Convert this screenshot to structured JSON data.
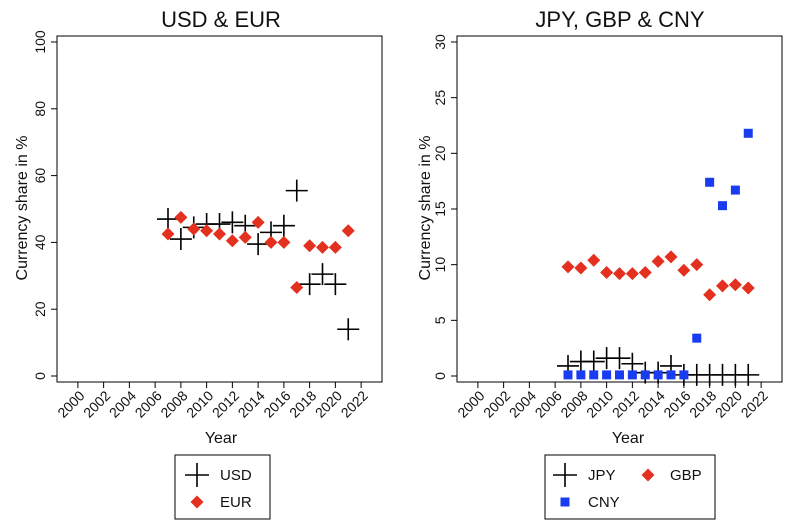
{
  "chart_data": [
    {
      "type": "scatter",
      "title": "USD & EUR",
      "xlabel": "Year",
      "ylabel": "Currency share in %",
      "xlim": [
        1999,
        2023
      ],
      "ylim": [
        0,
        100
      ],
      "xticks": [
        "2000",
        "2002",
        "2004",
        "2006",
        "2008",
        "2010",
        "2012",
        "2014",
        "2016",
        "2018",
        "2020",
        "2022"
      ],
      "yticks": [
        "0",
        "20",
        "40",
        "60",
        "80",
        "100"
      ],
      "grid": false,
      "legend_position": "bottom",
      "series": [
        {
          "name": "USD",
          "marker": "plus",
          "color": "#000000",
          "x": [
            2007,
            2008,
            2009,
            2010,
            2011,
            2012,
            2013,
            2014,
            2015,
            2016,
            2017,
            2018,
            2019,
            2020,
            2021
          ],
          "y": [
            47,
            41,
            44.5,
            45.5,
            45.5,
            46,
            45,
            39.5,
            43,
            45,
            55.5,
            27.5,
            30.5,
            27.5,
            14
          ]
        },
        {
          "name": "EUR",
          "marker": "diamond",
          "color": "#e3301f",
          "x": [
            2007,
            2008,
            2009,
            2010,
            2011,
            2012,
            2013,
            2014,
            2015,
            2016,
            2017,
            2018,
            2019,
            2020,
            2021
          ],
          "y": [
            42.5,
            47.5,
            44,
            43.5,
            42.5,
            40.5,
            41.5,
            46,
            40,
            40,
            26.5,
            39,
            38.5,
            38.5,
            43.5
          ]
        }
      ]
    },
    {
      "type": "scatter",
      "title": "JPY, GBP & CNY",
      "xlabel": "Year",
      "ylabel": "Currency share in %",
      "xlim": [
        1999,
        2023
      ],
      "ylim": [
        0,
        30
      ],
      "xticks": [
        "2000",
        "2002",
        "2004",
        "2006",
        "2008",
        "2010",
        "2012",
        "2014",
        "2016",
        "2018",
        "2020",
        "2022"
      ],
      "yticks": [
        "0",
        "5",
        "10",
        "15",
        "20",
        "25",
        "30"
      ],
      "grid": false,
      "legend_position": "bottom",
      "series": [
        {
          "name": "JPY",
          "marker": "plus",
          "color": "#000000",
          "x": [
            2007,
            2008,
            2009,
            2010,
            2011,
            2012,
            2013,
            2014,
            2015,
            2016,
            2017,
            2018,
            2019,
            2020,
            2021
          ],
          "y": [
            0.9,
            1.3,
            1.3,
            1.6,
            1.6,
            1.1,
            0.3,
            0.3,
            0.9,
            0.1,
            0.1,
            0.1,
            0.1,
            0.1,
            0.1
          ]
        },
        {
          "name": "GBP",
          "marker": "diamond",
          "color": "#e3301f",
          "x": [
            2007,
            2008,
            2009,
            2010,
            2011,
            2012,
            2013,
            2014,
            2015,
            2016,
            2017,
            2018,
            2019,
            2020,
            2021
          ],
          "y": [
            9.8,
            9.7,
            10.4,
            9.3,
            9.2,
            9.2,
            9.3,
            10.3,
            10.7,
            9.5,
            10.0,
            7.3,
            8.1,
            8.2,
            7.9
          ]
        },
        {
          "name": "CNY",
          "marker": "square",
          "color": "#1a3cf0",
          "x": [
            2007,
            2008,
            2009,
            2010,
            2011,
            2012,
            2013,
            2014,
            2015,
            2016,
            2017,
            2018,
            2019,
            2020,
            2021
          ],
          "y": [
            0.1,
            0.1,
            0.1,
            0.1,
            0.1,
            0.1,
            0.1,
            0.1,
            0.1,
            0.1,
            3.4,
            17.4,
            15.3,
            16.7,
            21.8
          ]
        }
      ]
    }
  ]
}
